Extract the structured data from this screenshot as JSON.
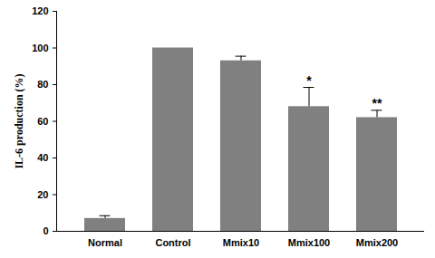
{
  "chart_data": {
    "type": "bar",
    "y_label": "IL-6 production (%)",
    "categories": [
      "Normal",
      "Control",
      "Mmix10",
      "Mmix100",
      "Mmix200"
    ],
    "values": [
      7,
      100,
      93,
      68,
      62
    ],
    "errors": [
      1.5,
      0,
      2.5,
      10.5,
      4
    ],
    "annotations": [
      null,
      null,
      null,
      "*",
      "**"
    ],
    "color": "#808080",
    "ylim": [
      0,
      120
    ],
    "yticks": [
      0,
      20,
      40,
      60,
      80,
      100,
      120
    ],
    "grid": false
  }
}
